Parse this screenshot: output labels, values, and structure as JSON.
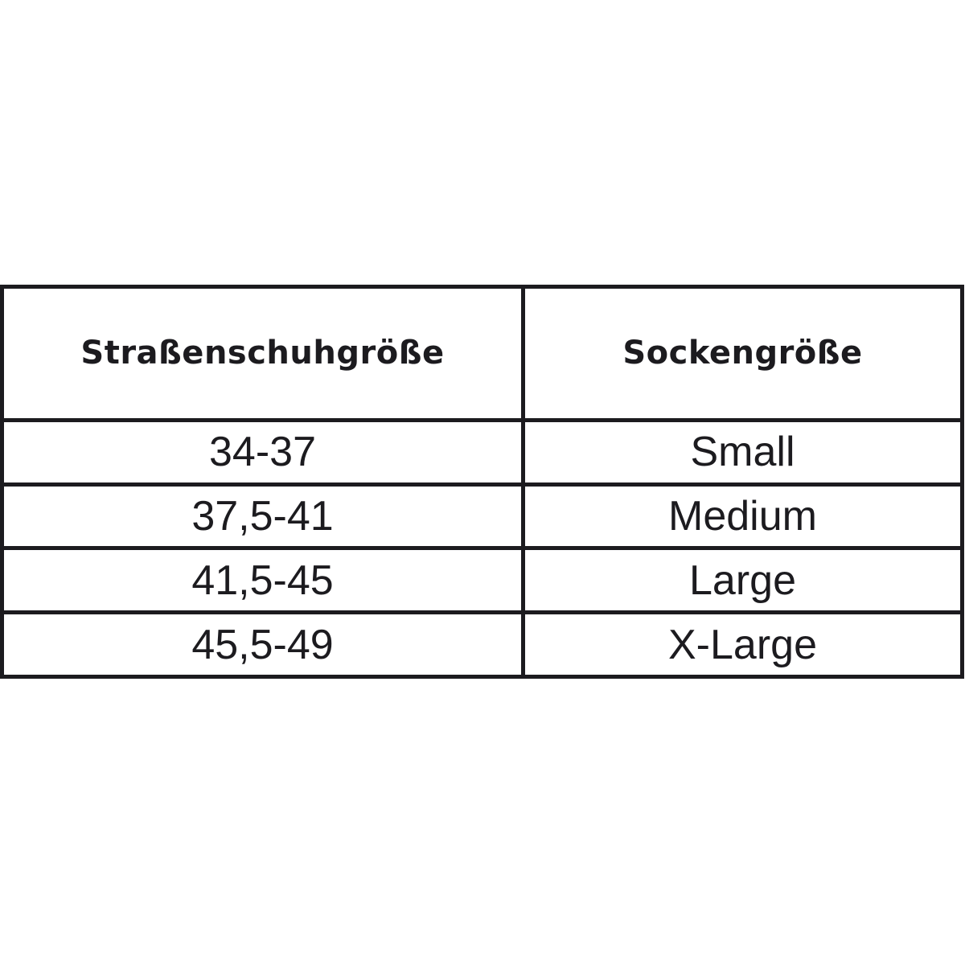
{
  "table": {
    "headers": [
      "Straßenschuhgröße",
      "Sockengröße"
    ],
    "rows": [
      [
        "34-37",
        "Small"
      ],
      [
        "37,5-41",
        "Medium"
      ],
      [
        "41,5-45",
        "Large"
      ],
      [
        "45,5-49",
        "X-Large"
      ]
    ]
  }
}
